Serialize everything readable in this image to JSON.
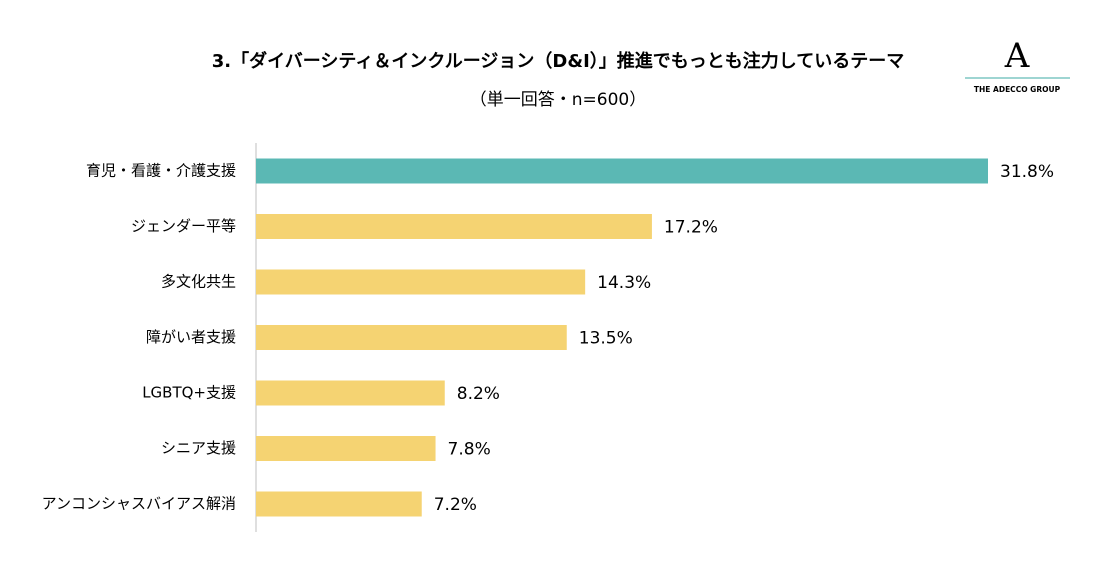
{
  "chart_data": {
    "type": "bar",
    "orientation": "horizontal",
    "title": "3.「ダイバーシティ＆インクルージョン（D&I）」推進でもっとも注力しているテーマ",
    "subtitle": "（単一回答・n=600）",
    "categories": [
      "育児・看護・介護支援",
      "ジェンダー平等",
      "多文化共生",
      "障がい者支援",
      "LGBTQ+支援",
      "シニア支援",
      "アンコンシャスバイアス解消"
    ],
    "values": [
      31.8,
      17.2,
      14.3,
      13.5,
      8.2,
      7.8,
      7.2
    ],
    "value_labels": [
      "31.8%",
      "17.2%",
      "14.3%",
      "13.5%",
      "8.2%",
      "7.8%",
      "7.2%"
    ],
    "colors": [
      "#5bb8b4",
      "#f5d372",
      "#f5d372",
      "#f5d372",
      "#f5d372",
      "#f5d372",
      "#f5d372"
    ]
  },
  "logo": {
    "mark": "A",
    "text": "THE ADECCO GROUP"
  }
}
